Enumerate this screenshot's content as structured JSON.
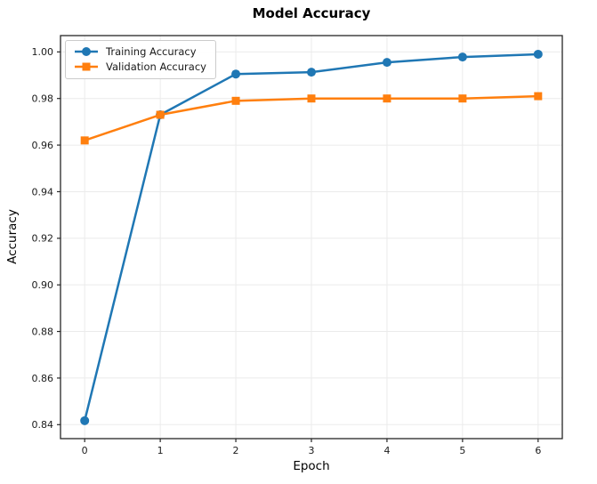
{
  "chart_data": {
    "type": "line",
    "title": "Model Accuracy",
    "xlabel": "Epoch",
    "ylabel": "Accuracy",
    "x": [
      0,
      1,
      2,
      3,
      4,
      5,
      6
    ],
    "series": [
      {
        "name": "Training Accuracy",
        "color": "#1f77b4",
        "marker": "circle",
        "values": [
          0.8417,
          0.973,
          0.9905,
          0.9913,
          0.9955,
          0.9978,
          0.999
        ]
      },
      {
        "name": "Validation Accuracy",
        "color": "#ff7f0e",
        "marker": "square",
        "values": [
          0.962,
          0.973,
          0.979,
          0.98,
          0.98,
          0.98,
          0.981
        ]
      }
    ],
    "xticks": [
      0,
      1,
      2,
      3,
      4,
      5,
      6
    ],
    "yticks": [
      0.84,
      0.86,
      0.88,
      0.9,
      0.92,
      0.94,
      0.96,
      0.98,
      1.0
    ],
    "xlim": [
      -0.32,
      6.32
    ],
    "ylim": [
      0.834,
      1.007
    ],
    "grid": true,
    "legend_position": "upper left",
    "colors": {
      "grid": "#ebebeb",
      "spine": "#262626",
      "tick_text": "#1a1a1a",
      "background": "#ffffff"
    }
  }
}
